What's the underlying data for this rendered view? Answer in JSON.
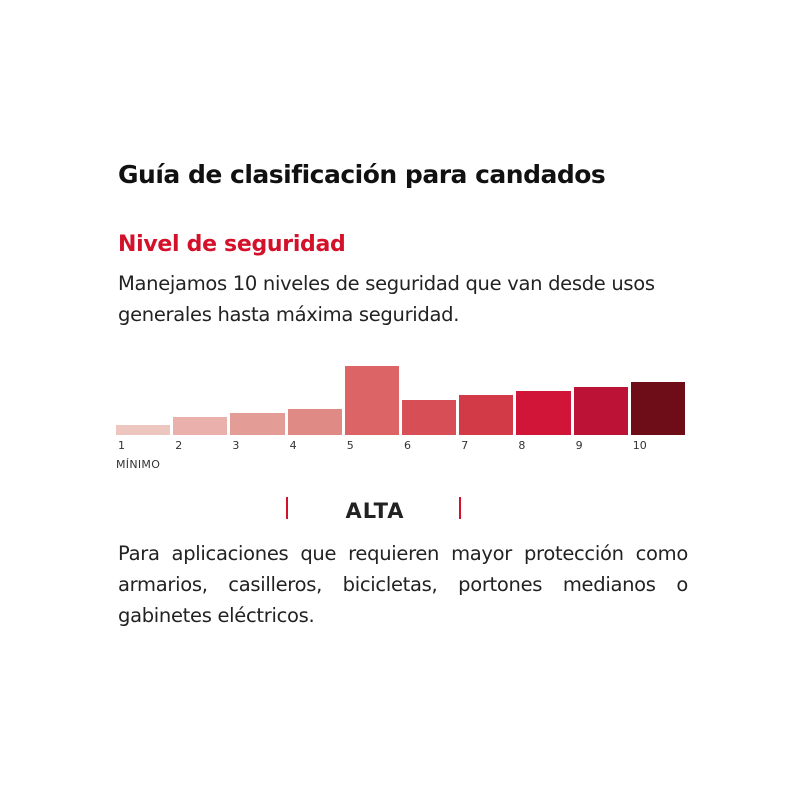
{
  "title": "Guía de clasificación para candados",
  "section": {
    "subtitle": "Nivel de seguridad",
    "intro": "Manejamos 10 niveles de seguridad que van desde usos generales hasta máxima seguridad."
  },
  "scale": {
    "levels": [
      {
        "label": "1",
        "value": 10,
        "color": "#eec6c0"
      },
      {
        "label": "2",
        "value": 17,
        "color": "#eab0ab"
      },
      {
        "label": "3",
        "value": 21,
        "color": "#e49c97"
      },
      {
        "label": "4",
        "value": 25,
        "color": "#e08a85"
      },
      {
        "label": "5",
        "value": 66,
        "color": "#dc6366",
        "highlight": true
      },
      {
        "label": "6",
        "value": 33,
        "color": "#d84e57"
      },
      {
        "label": "7",
        "value": 38,
        "color": "#d33a48"
      },
      {
        "label": "8",
        "value": 42,
        "color": "#d11539"
      },
      {
        "label": "9",
        "value": 46,
        "color": "#bb1236"
      },
      {
        "label": "10",
        "value": 51,
        "color": "#6e0d18"
      }
    ],
    "min_label": "MÍNIMO"
  },
  "current_level": {
    "name": "ALTA",
    "description": "Para aplicaciones que requieren mayor protección como armarios, casilleros, bicicletas, portones medianos o gabinetes eléctricos."
  },
  "colors": {
    "accent": "#d4112b",
    "text": "#1a1a1a"
  }
}
